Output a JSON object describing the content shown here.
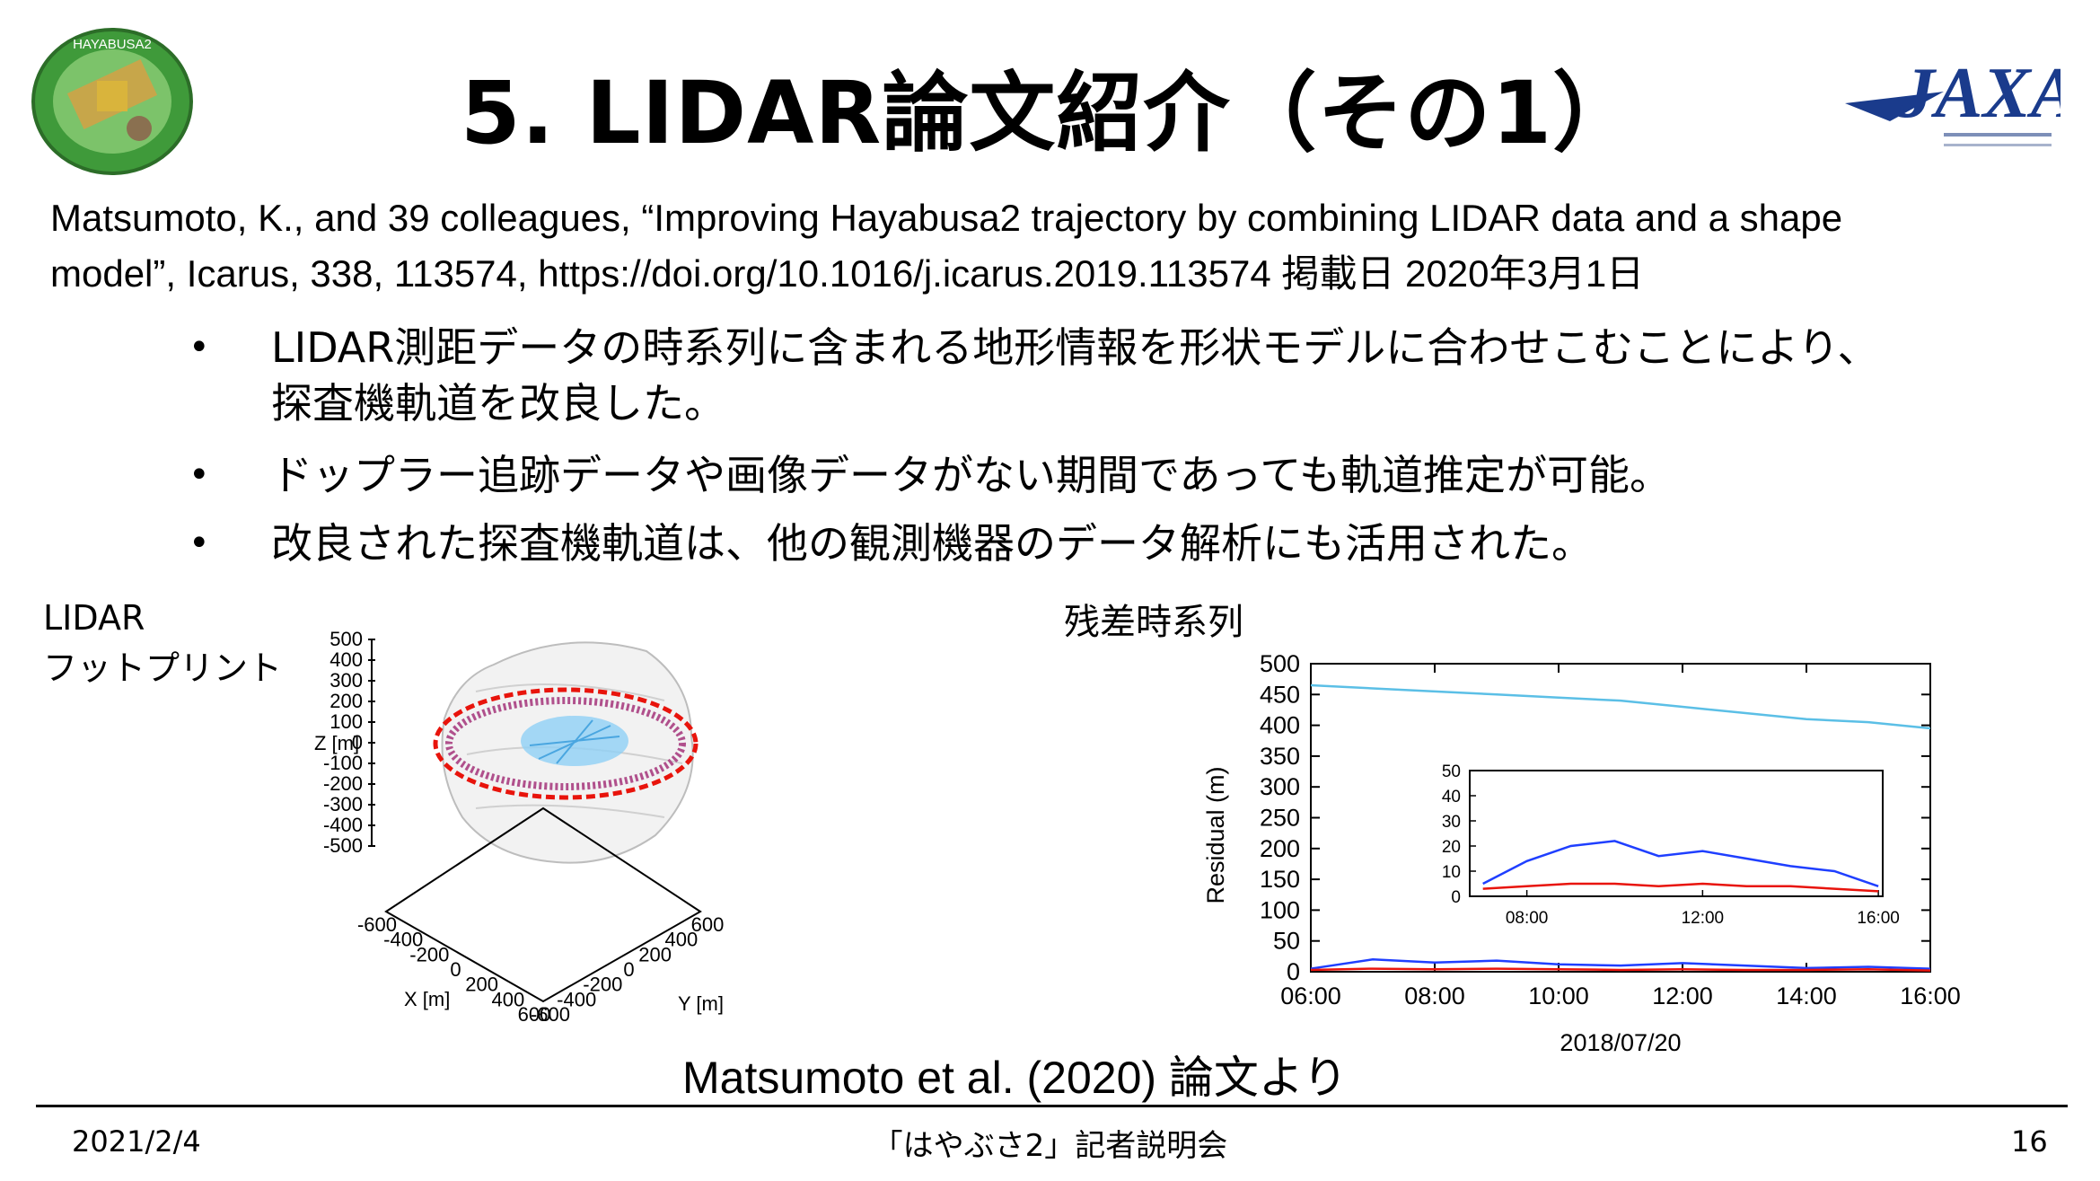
{
  "slide": {
    "title": "5. LIDAR論文紹介（その1）",
    "citation_line1": "Matsumoto, K., and 39 colleagues, “Improving Hayabusa2 trajectory by combining LIDAR data and a shape",
    "citation_line2": "model”, Icarus, 338, 113574, https://doi.org/10.1016/j.icarus.2019.113574 掲載日 2020年3月1日",
    "bullets": [
      {
        "marker": "•",
        "line1": "LIDAR測距データの時系列に含まれる地形情報を形状モデルに合わせこむことにより、",
        "line2": "探査機軌道を改良した。"
      },
      {
        "marker": "•",
        "line1": "ドップラー追跡データや画像データがない期間であっても軌道推定が可能。",
        "line2": ""
      },
      {
        "marker": "•",
        "line1": "改良された探査機軌道は、他の観測機器のデータ解析にも活用された。",
        "line2": ""
      }
    ],
    "figure_left_label_line1": "LIDAR",
    "figure_left_label_line2": "フットプリント",
    "figure_right_label": "残差時系列",
    "source": "Matsumoto et al. (2020) 論文より"
  },
  "logos": {
    "left_badge_text": "HAYABUSA2",
    "right_logo_text": "JAXA"
  },
  "footer": {
    "date": "2021/2/4",
    "center": "「はやぶさ2」記者説明会",
    "page": "16"
  },
  "colors": {
    "blue_series": "#1f3fff",
    "red_series": "#e8140c",
    "cyan_series": "#5bbfe6",
    "jaxa_blue": "#1a3b8c"
  },
  "chart_data": [
    {
      "type": "scatter",
      "subtype": "3d",
      "title": "",
      "xlabel": "X [m]",
      "ylabel": "Y [m]",
      "zlabel": "Z [m]",
      "z_ticks": [
        "500",
        "400",
        "300",
        "200",
        "100",
        "0",
        "-100",
        "-200",
        "-300",
        "-400",
        "-500"
      ],
      "x_ticks": [
        "-600",
        "-400",
        "-200",
        "0",
        "200",
        "400",
        "600"
      ],
      "y_ticks": [
        "-600",
        "-400",
        "-200",
        "0",
        "200",
        "400",
        "600"
      ]
    },
    {
      "type": "line",
      "title": "",
      "xlabel": "2018/07/20",
      "ylabel": "Residual (m)",
      "ylim": [
        0,
        500
      ],
      "y_ticks": [
        "500",
        "450",
        "400",
        "350",
        "300",
        "250",
        "200",
        "150",
        "100",
        "50",
        "0"
      ],
      "x_ticks": [
        "06:00",
        "08:00",
        "10:00",
        "12:00",
        "14:00",
        "16:00"
      ],
      "series": [
        {
          "color": "#5bbfe6",
          "x": [
            6.0,
            7.0,
            8.0,
            9.0,
            10.0,
            11.0,
            12.0,
            13.0,
            14.0,
            15.0,
            16.0
          ],
          "values": [
            465,
            460,
            455,
            450,
            445,
            440,
            430,
            420,
            410,
            405,
            395
          ]
        },
        {
          "color": "#1f3fff",
          "x": [
            6.0,
            7.0,
            8.0,
            9.0,
            10.0,
            11.0,
            12.0,
            13.0,
            14.0,
            15.0,
            16.0
          ],
          "values": [
            5,
            20,
            15,
            18,
            12,
            10,
            14,
            10,
            6,
            8,
            5
          ]
        },
        {
          "color": "#e8140c",
          "x": [
            6.0,
            7.0,
            8.0,
            9.0,
            10.0,
            11.0,
            12.0,
            13.0,
            14.0,
            15.0,
            16.0
          ],
          "values": [
            3,
            5,
            4,
            5,
            4,
            3,
            4,
            3,
            3,
            4,
            2
          ]
        }
      ],
      "inset": {
        "ylim": [
          0,
          50
        ],
        "y_ticks": [
          "50",
          "40",
          "30",
          "20",
          "10",
          "0"
        ],
        "x_ticks": [
          "08:00",
          "12:00",
          "16:00"
        ],
        "series": [
          {
            "color": "#1f3fff",
            "x": [
              7.0,
              8.0,
              9.0,
              10.0,
              11.0,
              12.0,
              13.0,
              14.0,
              15.0,
              16.0
            ],
            "values": [
              5,
              14,
              20,
              22,
              16,
              18,
              15,
              12,
              10,
              4
            ]
          },
          {
            "color": "#e8140c",
            "x": [
              7.0,
              8.0,
              9.0,
              10.0,
              11.0,
              12.0,
              13.0,
              14.0,
              15.0,
              16.0
            ],
            "values": [
              3,
              4,
              5,
              5,
              4,
              5,
              4,
              4,
              3,
              2
            ]
          }
        ]
      }
    }
  ]
}
